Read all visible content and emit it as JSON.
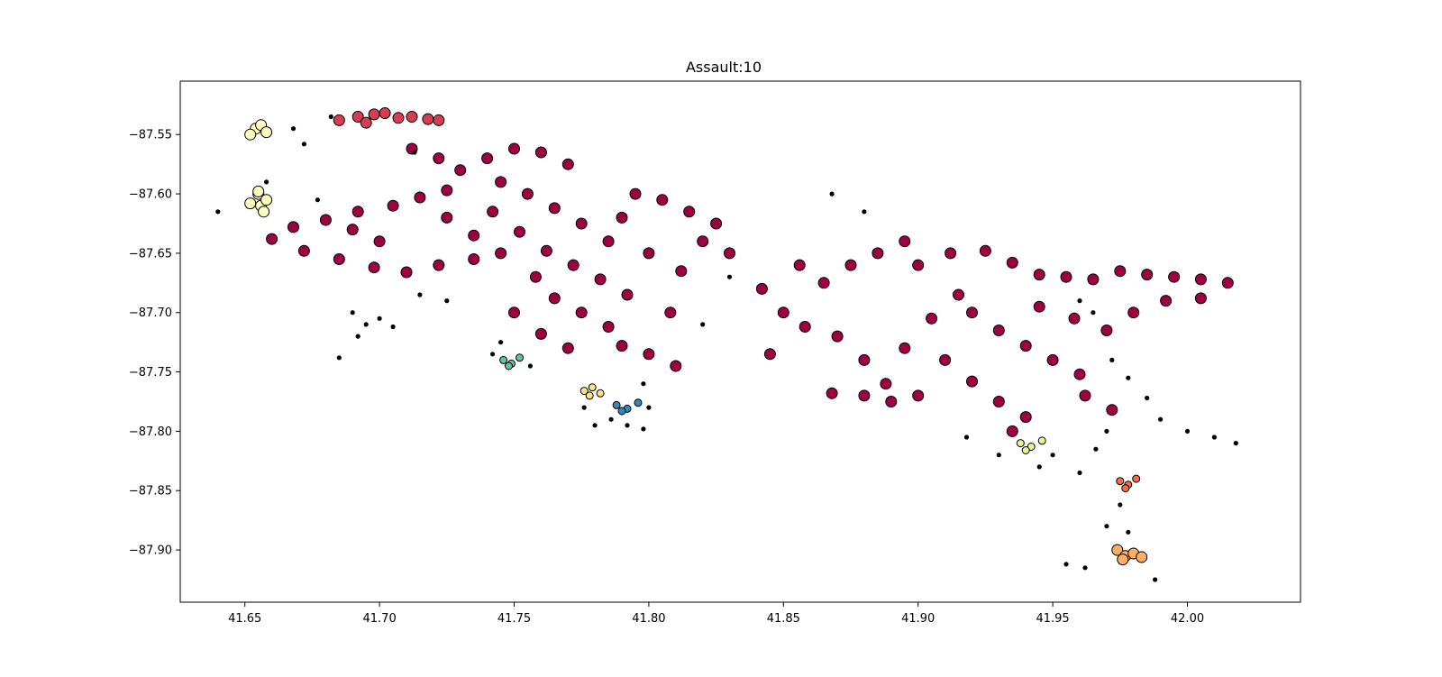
{
  "chart_data": {
    "type": "scatter",
    "title": "Assault:10",
    "xlabel": "",
    "ylabel": "",
    "xlim": [
      41.626,
      42.042
    ],
    "ylim": [
      -87.944,
      -87.505
    ],
    "grid": false,
    "legend": "none",
    "xticks": [
      {
        "value": 41.65,
        "label": "41.65"
      },
      {
        "value": 41.7,
        "label": "41.70"
      },
      {
        "value": 41.75,
        "label": "41.75"
      },
      {
        "value": 41.8,
        "label": "41.80"
      },
      {
        "value": 41.85,
        "label": "41.85"
      },
      {
        "value": 41.9,
        "label": "41.90"
      },
      {
        "value": 41.95,
        "label": "41.95"
      },
      {
        "value": 42.0,
        "label": "42.00"
      }
    ],
    "yticks": [
      {
        "value": -87.55,
        "label": "−87.55"
      },
      {
        "value": -87.6,
        "label": "−87.60"
      },
      {
        "value": -87.65,
        "label": "−87.65"
      },
      {
        "value": -87.7,
        "label": "−87.70"
      },
      {
        "value": -87.75,
        "label": "−87.75"
      },
      {
        "value": -87.8,
        "label": "−87.80"
      },
      {
        "value": -87.85,
        "label": "−87.85"
      },
      {
        "value": -87.9,
        "label": "−87.90"
      }
    ],
    "clusters": [
      {
        "color": "#9e0142",
        "point_size": "large",
        "points": [
          [
            41.66,
            -87.638
          ],
          [
            41.668,
            -87.628
          ],
          [
            41.68,
            -87.622
          ],
          [
            41.692,
            -87.615
          ],
          [
            41.705,
            -87.61
          ],
          [
            41.715,
            -87.603
          ],
          [
            41.725,
            -87.597
          ],
          [
            41.672,
            -87.648
          ],
          [
            41.685,
            -87.655
          ],
          [
            41.698,
            -87.662
          ],
          [
            41.71,
            -87.666
          ],
          [
            41.722,
            -87.66
          ],
          [
            41.735,
            -87.655
          ],
          [
            41.73,
            -87.58
          ],
          [
            41.74,
            -87.57
          ],
          [
            41.75,
            -87.562
          ],
          [
            41.76,
            -87.565
          ],
          [
            41.77,
            -87.575
          ],
          [
            41.745,
            -87.59
          ],
          [
            41.755,
            -87.6
          ],
          [
            41.765,
            -87.612
          ],
          [
            41.775,
            -87.625
          ],
          [
            41.742,
            -87.615
          ],
          [
            41.752,
            -87.632
          ],
          [
            41.762,
            -87.648
          ],
          [
            41.772,
            -87.66
          ],
          [
            41.782,
            -87.672
          ],
          [
            41.792,
            -87.685
          ],
          [
            41.745,
            -87.65
          ],
          [
            41.758,
            -87.67
          ],
          [
            41.765,
            -87.688
          ],
          [
            41.775,
            -87.7
          ],
          [
            41.785,
            -87.712
          ],
          [
            41.79,
            -87.728
          ],
          [
            41.8,
            -87.735
          ],
          [
            41.75,
            -87.7
          ],
          [
            41.76,
            -87.718
          ],
          [
            41.77,
            -87.73
          ],
          [
            41.712,
            -87.562
          ],
          [
            41.722,
            -87.57
          ],
          [
            41.795,
            -87.6
          ],
          [
            41.805,
            -87.605
          ],
          [
            41.815,
            -87.615
          ],
          [
            41.825,
            -87.625
          ],
          [
            41.8,
            -87.65
          ],
          [
            41.812,
            -87.665
          ],
          [
            41.82,
            -87.64
          ],
          [
            41.83,
            -87.65
          ],
          [
            41.785,
            -87.64
          ],
          [
            41.79,
            -87.62
          ],
          [
            41.808,
            -87.7
          ],
          [
            41.81,
            -87.745
          ],
          [
            41.842,
            -87.68
          ],
          [
            41.85,
            -87.7
          ],
          [
            41.858,
            -87.712
          ],
          [
            41.865,
            -87.675
          ],
          [
            41.875,
            -87.66
          ],
          [
            41.87,
            -87.72
          ],
          [
            41.88,
            -87.74
          ],
          [
            41.888,
            -87.76
          ],
          [
            41.895,
            -87.73
          ],
          [
            41.905,
            -87.705
          ],
          [
            41.915,
            -87.685
          ],
          [
            41.885,
            -87.65
          ],
          [
            41.895,
            -87.64
          ],
          [
            41.9,
            -87.66
          ],
          [
            41.912,
            -87.65
          ],
          [
            41.925,
            -87.648
          ],
          [
            41.935,
            -87.658
          ],
          [
            41.945,
            -87.668
          ],
          [
            41.955,
            -87.67
          ],
          [
            41.965,
            -87.672
          ],
          [
            41.975,
            -87.665
          ],
          [
            41.985,
            -87.668
          ],
          [
            41.995,
            -87.67
          ],
          [
            42.005,
            -87.672
          ],
          [
            42.015,
            -87.675
          ],
          [
            41.92,
            -87.7
          ],
          [
            41.93,
            -87.715
          ],
          [
            41.94,
            -87.728
          ],
          [
            41.95,
            -87.74
          ],
          [
            41.96,
            -87.752
          ],
          [
            41.945,
            -87.695
          ],
          [
            41.958,
            -87.705
          ],
          [
            41.97,
            -87.715
          ],
          [
            41.98,
            -87.7
          ],
          [
            41.992,
            -87.69
          ],
          [
            42.005,
            -87.688
          ],
          [
            41.91,
            -87.74
          ],
          [
            41.92,
            -87.758
          ],
          [
            41.93,
            -87.775
          ],
          [
            41.94,
            -87.788
          ],
          [
            41.935,
            -87.8
          ],
          [
            41.9,
            -87.77
          ],
          [
            41.89,
            -87.775
          ],
          [
            41.88,
            -87.77
          ],
          [
            41.868,
            -87.768
          ],
          [
            41.962,
            -87.77
          ],
          [
            41.972,
            -87.782
          ],
          [
            41.845,
            -87.735
          ],
          [
            41.856,
            -87.66
          ],
          [
            41.725,
            -87.62
          ],
          [
            41.735,
            -87.635
          ],
          [
            41.7,
            -87.64
          ],
          [
            41.69,
            -87.63
          ]
        ]
      },
      {
        "color": "#d53e4f",
        "point_size": "large",
        "points": [
          [
            41.685,
            -87.538
          ],
          [
            41.692,
            -87.535
          ],
          [
            41.698,
            -87.533
          ],
          [
            41.702,
            -87.532
          ],
          [
            41.707,
            -87.536
          ],
          [
            41.712,
            -87.535
          ],
          [
            41.718,
            -87.537
          ],
          [
            41.722,
            -87.538
          ],
          [
            41.695,
            -87.54
          ]
        ]
      },
      {
        "color": "#ffffbf",
        "point_size": "large",
        "points": [
          [
            41.654,
            -87.545
          ],
          [
            41.656,
            -87.542
          ],
          [
            41.658,
            -87.548
          ],
          [
            41.652,
            -87.55
          ],
          [
            41.655,
            -87.6
          ],
          [
            41.656,
            -87.61
          ],
          [
            41.658,
            -87.605
          ],
          [
            41.655,
            -87.598
          ],
          [
            41.657,
            -87.615
          ],
          [
            41.652,
            -87.608
          ]
        ]
      },
      {
        "color": "#66c2a5",
        "point_size": "small",
        "points": [
          [
            41.746,
            -87.74
          ],
          [
            41.749,
            -87.743
          ],
          [
            41.752,
            -87.738
          ],
          [
            41.748,
            -87.745
          ]
        ]
      },
      {
        "color": "#fee08b",
        "point_size": "small",
        "points": [
          [
            41.776,
            -87.766
          ],
          [
            41.779,
            -87.763
          ],
          [
            41.782,
            -87.768
          ],
          [
            41.778,
            -87.77
          ]
        ]
      },
      {
        "color": "#3288bd",
        "point_size": "small",
        "points": [
          [
            41.788,
            -87.778
          ],
          [
            41.792,
            -87.781
          ],
          [
            41.796,
            -87.776
          ],
          [
            41.79,
            -87.783
          ]
        ]
      },
      {
        "color": "#e6f598",
        "point_size": "small",
        "points": [
          [
            41.938,
            -87.81
          ],
          [
            41.942,
            -87.813
          ],
          [
            41.946,
            -87.808
          ],
          [
            41.94,
            -87.816
          ]
        ]
      },
      {
        "color": "#f46d43",
        "point_size": "small",
        "points": [
          [
            41.975,
            -87.842
          ],
          [
            41.978,
            -87.845
          ],
          [
            41.981,
            -87.84
          ],
          [
            41.977,
            -87.848
          ]
        ]
      },
      {
        "color": "#fdae61",
        "point_size": "large",
        "points": [
          [
            41.974,
            -87.9
          ],
          [
            41.977,
            -87.905
          ],
          [
            41.98,
            -87.903
          ],
          [
            41.983,
            -87.906
          ],
          [
            41.976,
            -87.908
          ]
        ]
      },
      {
        "color": "#000000",
        "point_size": "noise",
        "points": [
          [
            41.69,
            -87.7
          ],
          [
            41.695,
            -87.71
          ],
          [
            41.7,
            -87.705
          ],
          [
            41.705,
            -87.712
          ],
          [
            41.692,
            -87.72
          ],
          [
            41.685,
            -87.738
          ],
          [
            41.715,
            -87.685
          ],
          [
            41.725,
            -87.69
          ],
          [
            41.745,
            -87.725
          ],
          [
            41.742,
            -87.735
          ],
          [
            41.756,
            -87.745
          ],
          [
            41.776,
            -87.78
          ],
          [
            41.78,
            -87.795
          ],
          [
            41.786,
            -87.79
          ],
          [
            41.792,
            -87.795
          ],
          [
            41.798,
            -87.76
          ],
          [
            41.8,
            -87.78
          ],
          [
            41.798,
            -87.798
          ],
          [
            41.83,
            -87.67
          ],
          [
            41.82,
            -87.71
          ],
          [
            41.868,
            -87.6
          ],
          [
            41.88,
            -87.615
          ],
          [
            41.96,
            -87.69
          ],
          [
            41.965,
            -87.7
          ],
          [
            41.972,
            -87.74
          ],
          [
            41.978,
            -87.755
          ],
          [
            41.985,
            -87.772
          ],
          [
            41.99,
            -87.79
          ],
          [
            42.0,
            -87.8
          ],
          [
            42.01,
            -87.805
          ],
          [
            42.018,
            -87.81
          ],
          [
            41.95,
            -87.82
          ],
          [
            41.96,
            -87.835
          ],
          [
            41.97,
            -87.8
          ],
          [
            41.975,
            -87.862
          ],
          [
            41.978,
            -87.885
          ],
          [
            41.97,
            -87.88
          ],
          [
            41.955,
            -87.912
          ],
          [
            41.988,
            -87.925
          ],
          [
            41.962,
            -87.915
          ],
          [
            41.64,
            -87.615
          ],
          [
            41.668,
            -87.545
          ],
          [
            41.672,
            -87.558
          ],
          [
            41.658,
            -87.59
          ],
          [
            41.677,
            -87.605
          ],
          [
            41.713,
            -87.565
          ],
          [
            41.682,
            -87.535
          ],
          [
            41.918,
            -87.805
          ],
          [
            41.93,
            -87.82
          ],
          [
            41.945,
            -87.83
          ],
          [
            41.966,
            -87.815
          ]
        ]
      }
    ]
  }
}
